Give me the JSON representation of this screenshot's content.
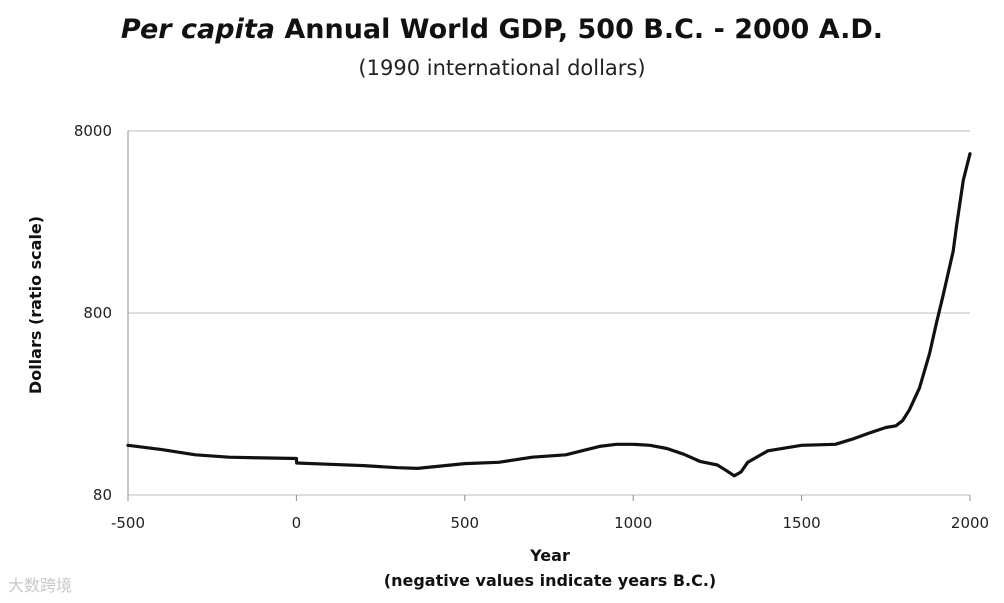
{
  "chart_data": {
    "type": "line",
    "title_italic": "Per capita",
    "title_rest": " Annual World GDP, 500 B.C. - 2000 A.D.",
    "subtitle": "(1990 international dollars)",
    "xlabel": "Year",
    "xlabel_note": "(negative values indicate years B.C.)",
    "ylabel": "Dollars (ratio scale)",
    "yscale": "log",
    "xlim": [
      -500,
      2000
    ],
    "ylim": [
      80,
      8000
    ],
    "xticks": [
      -500,
      0,
      500,
      1000,
      1500,
      2000
    ],
    "xtick_labels": [
      "-500",
      "0",
      "500",
      "1000",
      "1500",
      "2000"
    ],
    "yticks": [
      80,
      800,
      8000
    ],
    "ytick_labels": [
      "80",
      "800",
      "8000"
    ],
    "grid": "horizontal",
    "line_color": "#111111",
    "series": [
      {
        "name": "Per capita GDP",
        "x": [
          -500,
          -400,
          -300,
          -200,
          -100,
          0,
          1,
          100,
          200,
          300,
          360,
          400,
          500,
          600,
          700,
          800,
          900,
          950,
          1000,
          1050,
          1100,
          1150,
          1200,
          1250,
          1280,
          1300,
          1320,
          1340,
          1400,
          1500,
          1600,
          1650,
          1700,
          1750,
          1780,
          1800,
          1820,
          1850,
          1880,
          1900,
          1920,
          1940,
          1950,
          1960,
          1980,
          2000
        ],
        "y": [
          150,
          142,
          133,
          129,
          128,
          127,
          120,
          118,
          116,
          113,
          112,
          114,
          119,
          121,
          129,
          133,
          148,
          152,
          152,
          150,
          144,
          134,
          122,
          117,
          108,
          102,
          107,
          121,
          140,
          150,
          152,
          162,
          175,
          188,
          192,
          205,
          235,
          310,
          480,
          700,
          1000,
          1450,
          1750,
          2400,
          4300,
          6000
        ]
      }
    ]
  },
  "watermark": "大数跨境"
}
